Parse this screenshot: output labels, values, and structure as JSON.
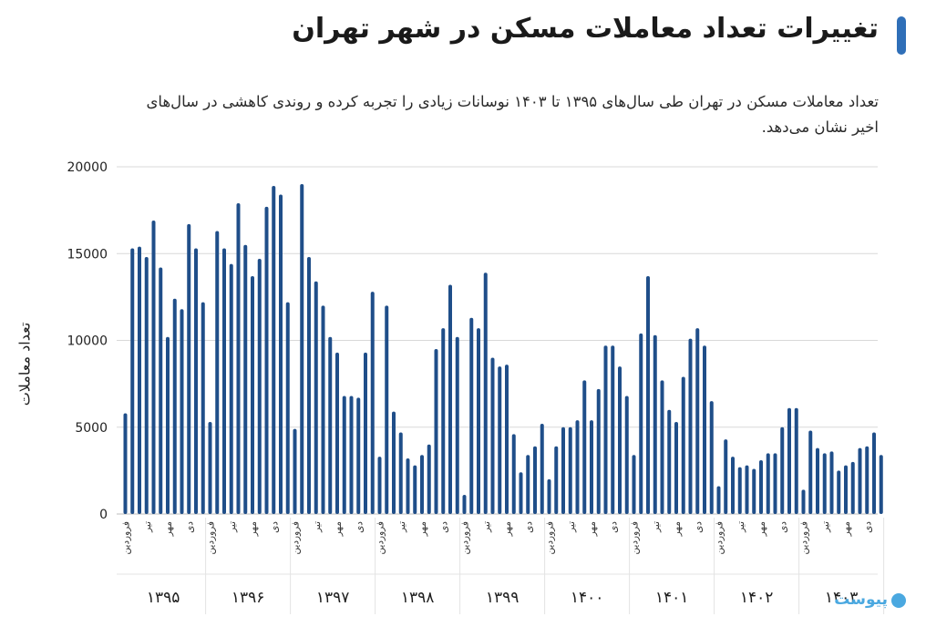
{
  "header": {
    "title": "تغییرات تعداد معاملات مسکن در شهر تهران",
    "subtitle": "تعداد معاملات مسکن در تهران طی سال‌های ۱۳۹۵ تا ۱۴۰۳ نوسانات زیادی را تجربه کرده و روندی کاهشی در سال‌های اخیر نشان می‌دهد."
  },
  "colors": {
    "bar": "#1f4e89",
    "grid": "#d9d9d9",
    "accent": "#2f6fb8",
    "logo": "#4aa8e0"
  },
  "logo": {
    "text": "پیوست"
  },
  "chart_data": {
    "type": "bar",
    "ylabel": "تعداد معاملات",
    "ylim": [
      0,
      20000
    ],
    "yticks": [
      {
        "value": 0,
        "label": "0"
      },
      {
        "value": 5000,
        "label": "5000"
      },
      {
        "value": 10000,
        "label": "10000"
      },
      {
        "value": 15000,
        "label": "15000"
      },
      {
        "value": 20000,
        "label": "20000"
      }
    ],
    "grid": true,
    "month_tick_labels": [
      "فروردین",
      "تیر",
      "مهر",
      "دی"
    ],
    "years": [
      {
        "label": "۱۳۹۵",
        "values": [
          5800,
          15300,
          15400,
          14800,
          16900,
          14200,
          10200,
          12400,
          11800,
          16700,
          15300,
          12200
        ]
      },
      {
        "label": "۱۳۹۶",
        "values": [
          5300,
          16300,
          15300,
          14400,
          17900,
          15500,
          13700,
          14700,
          17700,
          18900,
          18400,
          12200
        ]
      },
      {
        "label": "۱۳۹۷",
        "values": [
          4900,
          19000,
          14800,
          13400,
          12000,
          10200,
          9300,
          6800,
          6800,
          6700,
          9300,
          12800
        ]
      },
      {
        "label": "۱۳۹۸",
        "values": [
          3300,
          12000,
          5900,
          4700,
          3200,
          2800,
          3400,
          4000,
          9500,
          10700,
          13200,
          10200
        ]
      },
      {
        "label": "۱۳۹۹",
        "values": [
          1100,
          11300,
          10700,
          13900,
          9000,
          8500,
          8600,
          4600,
          2400,
          3400,
          3900,
          5200
        ]
      },
      {
        "label": "۱۴۰۰",
        "values": [
          2000,
          3900,
          5000,
          5000,
          5400,
          7700,
          5400,
          7200,
          9700,
          9700,
          8500,
          6800
        ]
      },
      {
        "label": "۱۴۰۱",
        "values": [
          3400,
          10400,
          13700,
          10300,
          7700,
          6000,
          5300,
          7900,
          10100,
          10700,
          9700,
          6500
        ]
      },
      {
        "label": "۱۴۰۲",
        "values": [
          1600,
          4300,
          3300,
          2700,
          2800,
          2600,
          3100,
          3500,
          3500,
          5000,
          6100,
          6100
        ]
      },
      {
        "label": "۱۴۰۳",
        "values": [
          1400,
          4800,
          3800,
          3500,
          3600,
          2500,
          2800,
          3000,
          3800,
          3900,
          4700,
          3400
        ]
      }
    ]
  }
}
